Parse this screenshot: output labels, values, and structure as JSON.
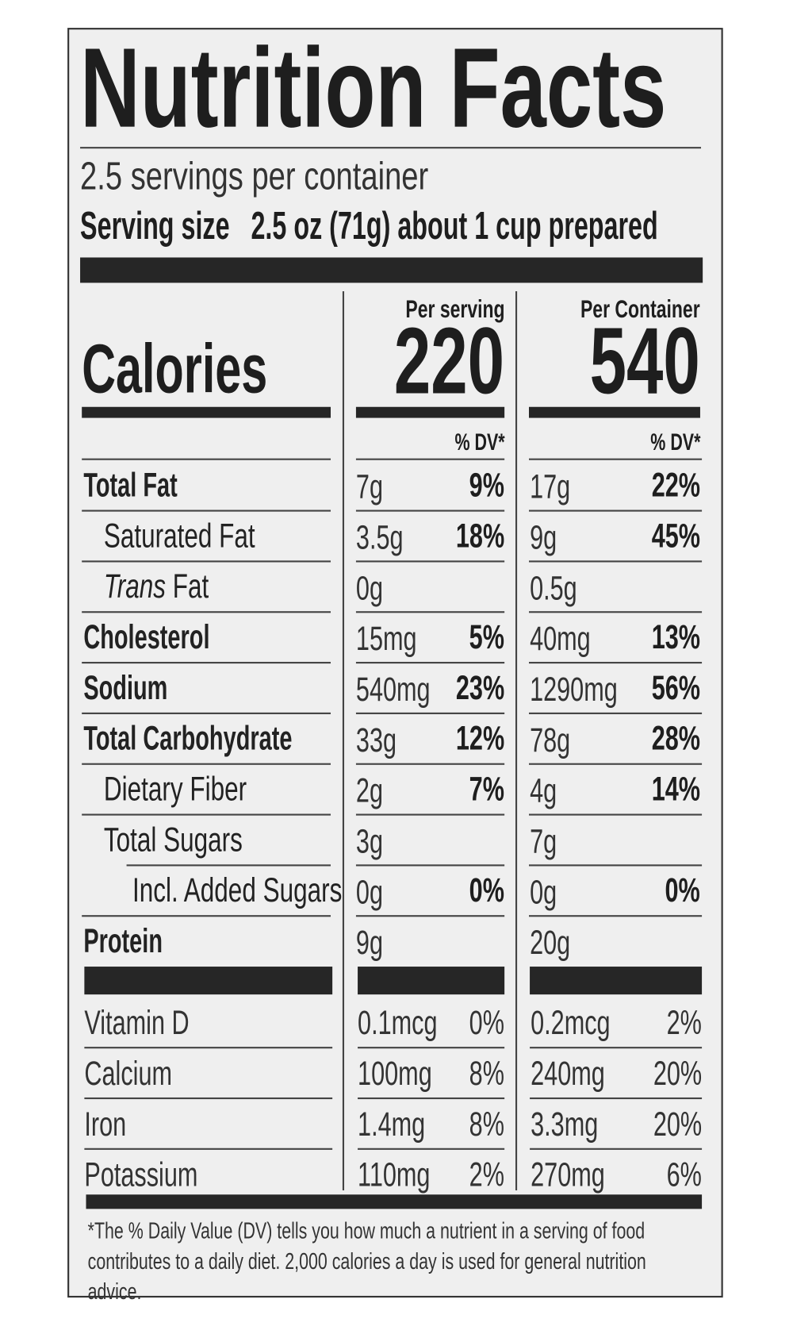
{
  "title": "Nutrition Facts",
  "servings_per_container": "2.5 servings per container",
  "serving_size": {
    "label": "Serving size",
    "value": "2.5 oz (71g) about 1 cup prepared"
  },
  "calories": {
    "label": "Calories",
    "per_serving_header": "Per serving",
    "per_serving": "220",
    "per_container_header": "Per Container",
    "per_container": "540"
  },
  "dv_header": "% DV*",
  "nutrients": [
    {
      "name": "Total Fat",
      "bold": true,
      "indent": 0,
      "serving_amount": "7g",
      "serving_dv": "9%",
      "container_amount": "17g",
      "container_dv": "22%"
    },
    {
      "name": "Saturated Fat",
      "bold": false,
      "indent": 1,
      "serving_amount": "3.5g",
      "serving_dv": "18%",
      "container_amount": "9g",
      "container_dv": "45%"
    },
    {
      "name_italic": "Trans",
      "name": " Fat",
      "bold": false,
      "indent": 1,
      "serving_amount": "0g",
      "serving_dv": "",
      "container_amount": "0.5g",
      "container_dv": ""
    },
    {
      "name": "Cholesterol",
      "bold": true,
      "indent": 0,
      "serving_amount": "15mg",
      "serving_dv": "5%",
      "container_amount": "40mg",
      "container_dv": "13%"
    },
    {
      "name": "Sodium",
      "bold": true,
      "indent": 0,
      "serving_amount": "540mg",
      "serving_dv": "23%",
      "container_amount": "1290mg",
      "container_dv": "56%"
    },
    {
      "name": "Total Carbohydrate",
      "bold": true,
      "indent": 0,
      "serving_amount": "33g",
      "serving_dv": "12%",
      "container_amount": "78g",
      "container_dv": "28%"
    },
    {
      "name": "Dietary Fiber",
      "bold": false,
      "indent": 1,
      "serving_amount": "2g",
      "serving_dv": "7%",
      "container_amount": "4g",
      "container_dv": "14%"
    },
    {
      "name": "Total Sugars",
      "bold": false,
      "indent": 1,
      "serving_amount": "3g",
      "serving_dv": "",
      "container_amount": "7g",
      "container_dv": ""
    },
    {
      "name": "Incl. Added Sugars",
      "bold": false,
      "indent": 2,
      "serving_amount": "0g",
      "serving_dv": "0%",
      "container_amount": "0g",
      "container_dv": "0%"
    },
    {
      "name": "Protein",
      "bold": true,
      "indent": 0,
      "serving_amount": "9g",
      "serving_dv": "",
      "container_amount": "20g",
      "container_dv": ""
    }
  ],
  "micronutrients": [
    {
      "name": "Vitamin D",
      "serving_amount": "0.1mcg",
      "serving_dv": "0%",
      "container_amount": "0.2mcg",
      "container_dv": "2%"
    },
    {
      "name": "Calcium",
      "serving_amount": "100mg",
      "serving_dv": "8%",
      "container_amount": "240mg",
      "container_dv": "20%"
    },
    {
      "name": "Iron",
      "serving_amount": "1.4mg",
      "serving_dv": "8%",
      "container_amount": "3.3mg",
      "container_dv": "20%"
    },
    {
      "name": "Potassium",
      "serving_amount": "110mg",
      "serving_dv": "2%",
      "container_amount": "270mg",
      "container_dv": "6%"
    }
  ],
  "footnote": "*The % Daily Value (DV) tells you how much a nutrient in a serving of food contributes to a daily diet. 2,000 calories a day is used for general nutrition advice."
}
